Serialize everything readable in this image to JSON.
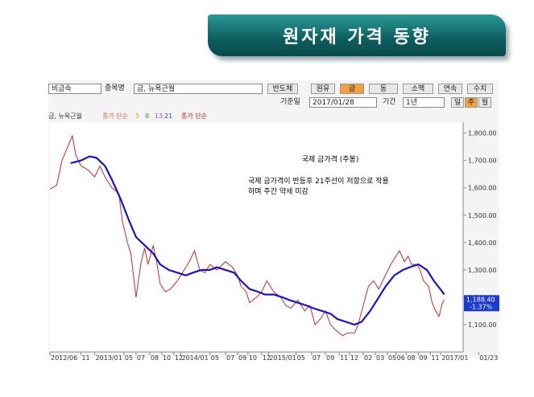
{
  "banner": {
    "title": "원자재 가격 동향"
  },
  "toolbar": {
    "group": "비금속",
    "item_label": "종목명",
    "item": "금, 뉴욕근월",
    "buttons": [
      "반도체",
      "원유",
      "금",
      "동",
      "소맥",
      "연속",
      "수치"
    ],
    "date_label": "기준일",
    "date": "2017/01/28",
    "period_label": "기간",
    "period": "1년",
    "intervals": [
      "일",
      "주",
      "월"
    ]
  },
  "legend": {
    "item": "금, 뉴욕근월",
    "ma_label": "종가 단순",
    "ma_periods": [
      5,
      8,
      13,
      21
    ],
    "ma2_label": "종가 단순"
  },
  "chart_data": {
    "type": "line",
    "annotations": [
      "국제 금가격 (주봉)",
      "국제 금가격이 반등후 21주선이 저항으로 작용",
      "하며 주간 약세 미감"
    ],
    "last_label": "1,188.40",
    "change_label": "-1.37%",
    "xlim": [
      0,
      240
    ],
    "xticks": [
      {
        "value": 0,
        "label": "2012/06"
      },
      {
        "value": 18,
        "label": "11"
      },
      {
        "value": 26,
        "label": "2013/01"
      },
      {
        "value": 43,
        "label": "05"
      },
      {
        "value": 50,
        "label": "07"
      },
      {
        "value": 58,
        "label": "08"
      },
      {
        "value": 65,
        "label": "10"
      },
      {
        "value": 72,
        "label": "12"
      },
      {
        "value": 76,
        "label": "2014/01"
      },
      {
        "value": 93,
        "label": "05"
      },
      {
        "value": 102,
        "label": "07"
      },
      {
        "value": 109,
        "label": "09"
      },
      {
        "value": 115,
        "label": "10"
      },
      {
        "value": 123,
        "label": "12"
      },
      {
        "value": 127,
        "label": "2015/01"
      },
      {
        "value": 143,
        "label": "05"
      },
      {
        "value": 152,
        "label": "07"
      },
      {
        "value": 160,
        "label": "09"
      },
      {
        "value": 168,
        "label": "11"
      },
      {
        "value": 174,
        "label": "12"
      },
      {
        "value": 182,
        "label": "02"
      },
      {
        "value": 189,
        "label": "03"
      },
      {
        "value": 196,
        "label": "05"
      },
      {
        "value": 201,
        "label": "06"
      },
      {
        "value": 207,
        "label": "08"
      },
      {
        "value": 214,
        "label": "09"
      },
      {
        "value": 221,
        "label": "11"
      },
      {
        "value": 227,
        "label": "2017/01"
      },
      {
        "value": 249,
        "label": "01/23"
      }
    ],
    "ylim": [
      1000,
      1840
    ],
    "yticks": [
      {
        "value": 1100,
        "label": "1,100.00"
      },
      {
        "value": 1200,
        "label": "1,200.00"
      },
      {
        "value": 1300,
        "label": "1,300.00"
      },
      {
        "value": 1400,
        "label": "1,400.00"
      },
      {
        "value": 1500,
        "label": "1,500.00"
      },
      {
        "value": 1600,
        "label": "1,600.00"
      },
      {
        "value": 1700,
        "label": "1,700.00"
      },
      {
        "value": 1800,
        "label": "1,800.00"
      }
    ],
    "series": [
      {
        "name": "금, 뉴욕근월",
        "color": "#d02828",
        "x": [
          0,
          4,
          7,
          11,
          13,
          15,
          18,
          21,
          23,
          26,
          29,
          32,
          36,
          40,
          42,
          45,
          47,
          50,
          53,
          55,
          57,
          60,
          62,
          64,
          67,
          70,
          74,
          78,
          81,
          84,
          87,
          90,
          93,
          97,
          102,
          106,
          109,
          111,
          114,
          116,
          120,
          123,
          126,
          130,
          134,
          137,
          140,
          144,
          148,
          151,
          154,
          157,
          160,
          163,
          166,
          170,
          173,
          177,
          179,
          182,
          185,
          188,
          191,
          194,
          198,
          200,
          203,
          206,
          208,
          210,
          213,
          215,
          217,
          220,
          222,
          224,
          226,
          228,
          229
        ],
        "values": [
          1595,
          1610,
          1700,
          1760,
          1790,
          1720,
          1680,
          1670,
          1660,
          1640,
          1680,
          1640,
          1600,
          1580,
          1480,
          1400,
          1360,
          1200,
          1330,
          1380,
          1320,
          1390,
          1330,
          1250,
          1220,
          1230,
          1260,
          1300,
          1330,
          1370,
          1300,
          1290,
          1320,
          1300,
          1330,
          1310,
          1280,
          1240,
          1220,
          1180,
          1200,
          1220,
          1260,
          1220,
          1200,
          1170,
          1160,
          1190,
          1150,
          1170,
          1100,
          1120,
          1150,
          1100,
          1080,
          1060,
          1070,
          1070,
          1100,
          1170,
          1240,
          1260,
          1230,
          1270,
          1320,
          1340,
          1370,
          1330,
          1350,
          1320,
          1320,
          1300,
          1260,
          1240,
          1180,
          1150,
          1130,
          1180,
          1190
        ]
      },
      {
        "name": "종가 단순",
        "color": "#1414d2",
        "x": [
          12,
          18,
          23,
          27,
          32,
          36,
          41,
          46,
          50,
          55,
          60,
          64,
          69,
          74,
          79,
          83,
          88,
          93,
          97,
          102,
          107,
          111,
          116,
          121,
          125,
          130,
          135,
          139,
          144,
          149,
          153,
          158,
          163,
          167,
          172,
          177,
          181,
          186,
          191,
          195,
          200,
          205,
          209,
          214,
          219,
          223,
          228,
          229
        ],
        "values": [
          1690,
          1700,
          1715,
          1710,
          1680,
          1630,
          1560,
          1480,
          1420,
          1390,
          1360,
          1320,
          1300,
          1290,
          1280,
          1290,
          1300,
          1300,
          1310,
          1300,
          1290,
          1260,
          1230,
          1220,
          1210,
          1210,
          1200,
          1190,
          1180,
          1170,
          1160,
          1150,
          1140,
          1120,
          1110,
          1100,
          1110,
          1150,
          1200,
          1240,
          1280,
          1300,
          1310,
          1320,
          1300,
          1260,
          1220,
          1210
        ]
      }
    ]
  }
}
